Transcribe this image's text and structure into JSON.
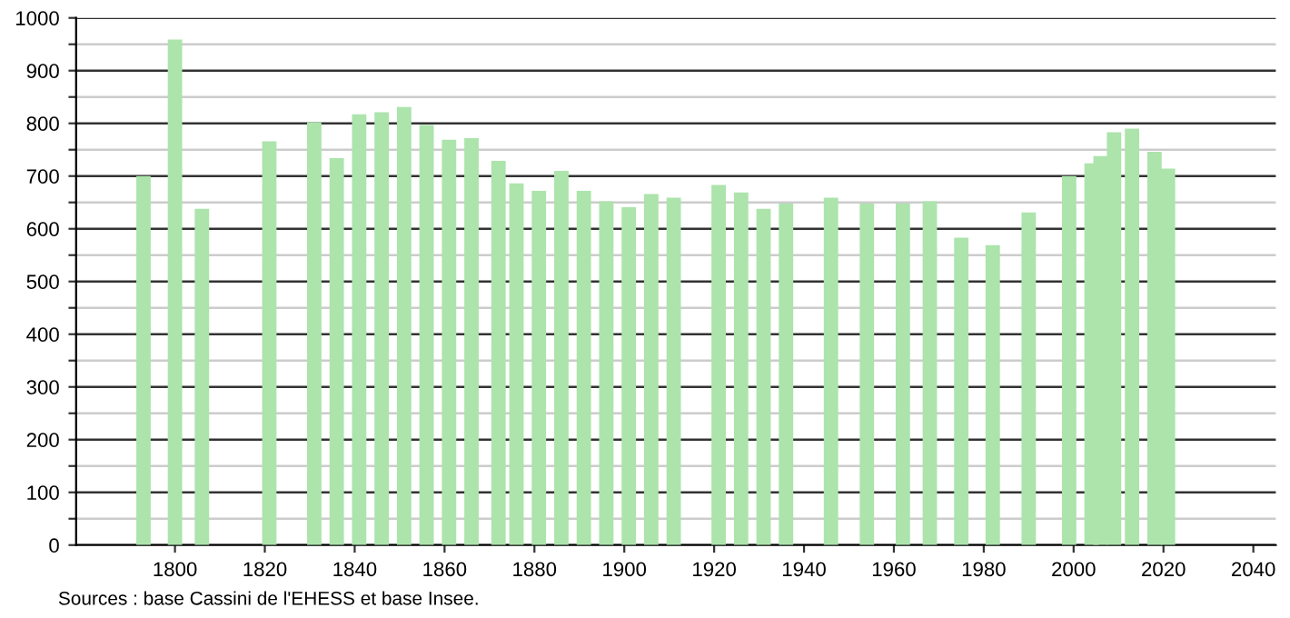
{
  "chart_data": {
    "type": "bar",
    "color": "#ace4ac",
    "x": [
      1793,
      1800,
      1806,
      1821,
      1831,
      1836,
      1841,
      1846,
      1851,
      1856,
      1861,
      1866,
      1872,
      1876,
      1881,
      1886,
      1891,
      1896,
      1901,
      1906,
      1911,
      1921,
      1926,
      1931,
      1936,
      1946,
      1954,
      1962,
      1968,
      1975,
      1982,
      1990,
      1999,
      2004,
      2006,
      2009,
      2013,
      2018,
      2021
    ],
    "values": [
      700,
      959,
      638,
      766,
      802,
      734,
      817,
      821,
      831,
      797,
      769,
      772,
      729,
      686,
      672,
      710,
      672,
      652,
      641,
      666,
      659,
      683,
      669,
      638,
      648,
      659,
      648,
      648,
      652,
      583,
      569,
      631,
      700,
      724,
      738,
      783,
      790,
      746,
      714
    ],
    "xlim": [
      1778,
      2045
    ],
    "xticks": [
      1800,
      1820,
      1840,
      1860,
      1880,
      1900,
      1920,
      1940,
      1960,
      1980,
      2000,
      2020,
      2040
    ],
    "ylim": [
      0,
      1000
    ],
    "yticks": [
      0,
      {
        "value": 50,
        "label": null
      },
      100,
      {
        "value": 150,
        "label": null
      },
      200,
      {
        "value": 250,
        "label": null
      },
      300,
      {
        "value": 350,
        "label": null
      },
      400,
      {
        "value": 450,
        "label": null
      },
      500,
      {
        "value": 550,
        "label": null
      },
      600,
      {
        "value": 650,
        "label": null
      },
      700,
      {
        "value": 750,
        "label": null
      },
      800,
      {
        "value": 850,
        "label": null
      },
      900,
      {
        "value": 950,
        "label": null
      },
      1000
    ],
    "grid": "y",
    "annotations": [
      "Sources : base Cassini de l'EHESS et base Insee."
    ]
  }
}
